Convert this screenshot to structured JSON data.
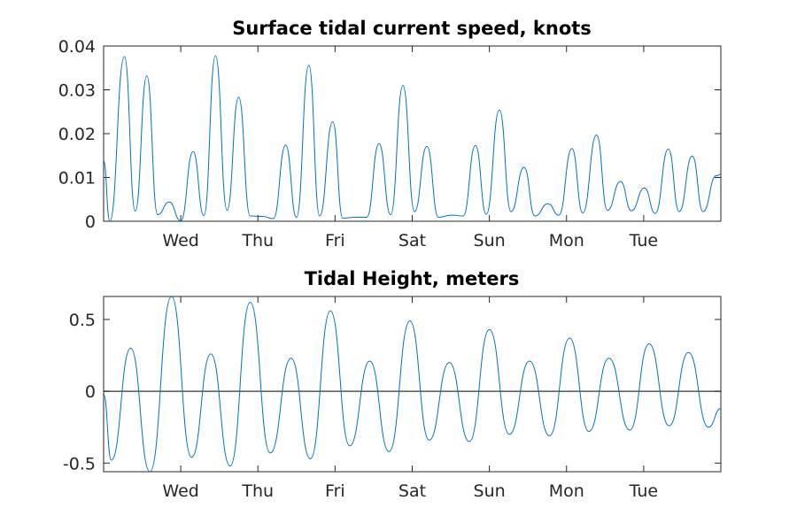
{
  "chart_data": [
    {
      "type": "line",
      "title": "Surface tidal current speed, knots",
      "xlabel": "",
      "ylabel": "",
      "xlim": [
        0,
        8
      ],
      "ylim": [
        0,
        0.04
      ],
      "yticks": [
        0,
        0.01,
        0.02,
        0.03,
        0.04
      ],
      "ytick_labels": [
        "0",
        "0.01",
        "0.02",
        "0.03",
        "0.04"
      ],
      "xticks": [
        1,
        2,
        3,
        4,
        5,
        6,
        7
      ],
      "xtick_labels": [
        "Wed",
        "Thu",
        "Fri",
        "Sat",
        "Sun",
        "Mon",
        "Tue"
      ],
      "grid": false,
      "line_color": "#0072bd",
      "x": [
        0,
        0.08,
        0.27,
        0.41,
        0.56,
        0.7,
        0.85,
        1.0,
        1.16,
        1.3,
        1.45,
        1.6,
        1.75,
        1.9,
        2.06,
        2.2,
        2.36,
        2.5,
        2.66,
        2.8,
        2.97,
        3.1,
        3.26,
        3.41,
        3.57,
        3.72,
        3.88,
        4.03,
        4.19,
        4.34,
        4.51,
        4.66,
        4.82,
        4.96,
        5.13,
        5.28,
        5.45,
        5.59,
        5.76,
        5.9,
        6.07,
        6.21,
        6.39,
        6.53,
        6.7,
        6.84,
        7.01,
        7.15,
        7.32,
        7.46,
        7.63,
        7.77,
        7.94,
        8.0
      ],
      "series": [
        {
          "values": [
            0.0138,
            0,
            0.0376,
            0.0023,
            0.0332,
            0.0015,
            0.0044,
            0.0001,
            0.0159,
            0.0013,
            0.0378,
            0.0025,
            0.0283,
            0.0012,
            0.0011,
            0.0006,
            0.0174,
            0.0009,
            0.0356,
            0.0012,
            0.0227,
            0.0007,
            0.0009,
            0.0009,
            0.0177,
            0.0015,
            0.031,
            0.0022,
            0.0171,
            0.0009,
            0.0014,
            0.0012,
            0.0173,
            0.0016,
            0.0254,
            0.0022,
            0.0123,
            0.0012,
            0.004,
            0.0014,
            0.0166,
            0.0019,
            0.0197,
            0.0025,
            0.0091,
            0.0024,
            0.0076,
            0.0018,
            0.0165,
            0.0022,
            0.0149,
            0.0022,
            0.0104,
            0.0107
          ]
        }
      ]
    },
    {
      "type": "line",
      "title": "Tidal Height, meters",
      "xlabel": "",
      "ylabel": "",
      "xlim": [
        0,
        8
      ],
      "ylim": [
        -0.56,
        0.66
      ],
      "yticks": [
        -0.5,
        0,
        0.5
      ],
      "ytick_labels": [
        "-0.5",
        "0",
        "0.5"
      ],
      "xticks": [
        1,
        2,
        3,
        4,
        5,
        6,
        7
      ],
      "xtick_labels": [
        "Wed",
        "Thu",
        "Fri",
        "Sat",
        "Sun",
        "Mon",
        "Tue"
      ],
      "grid": false,
      "reference_line_y": 0,
      "reference_line_color": "#000000",
      "line_color": "#0072bd",
      "x": [
        0,
        0.1,
        0.35,
        0.6,
        0.88,
        1.14,
        1.39,
        1.64,
        1.9,
        2.16,
        2.43,
        2.68,
        2.94,
        3.19,
        3.45,
        3.7,
        3.97,
        4.22,
        4.48,
        4.74,
        5.0,
        5.26,
        5.52,
        5.78,
        6.04,
        6.29,
        6.55,
        6.82,
        7.07,
        7.33,
        7.58,
        7.84,
        8.0
      ],
      "series": [
        {
          "values": [
            -0.02,
            -0.48,
            0.3,
            -0.56,
            0.66,
            -0.46,
            0.26,
            -0.52,
            0.62,
            -0.43,
            0.23,
            -0.47,
            0.56,
            -0.38,
            0.21,
            -0.42,
            0.49,
            -0.34,
            0.2,
            -0.35,
            0.43,
            -0.3,
            0.21,
            -0.31,
            0.37,
            -0.28,
            0.23,
            -0.27,
            0.33,
            -0.24,
            0.27,
            -0.25,
            -0.12
          ]
        }
      ]
    }
  ]
}
